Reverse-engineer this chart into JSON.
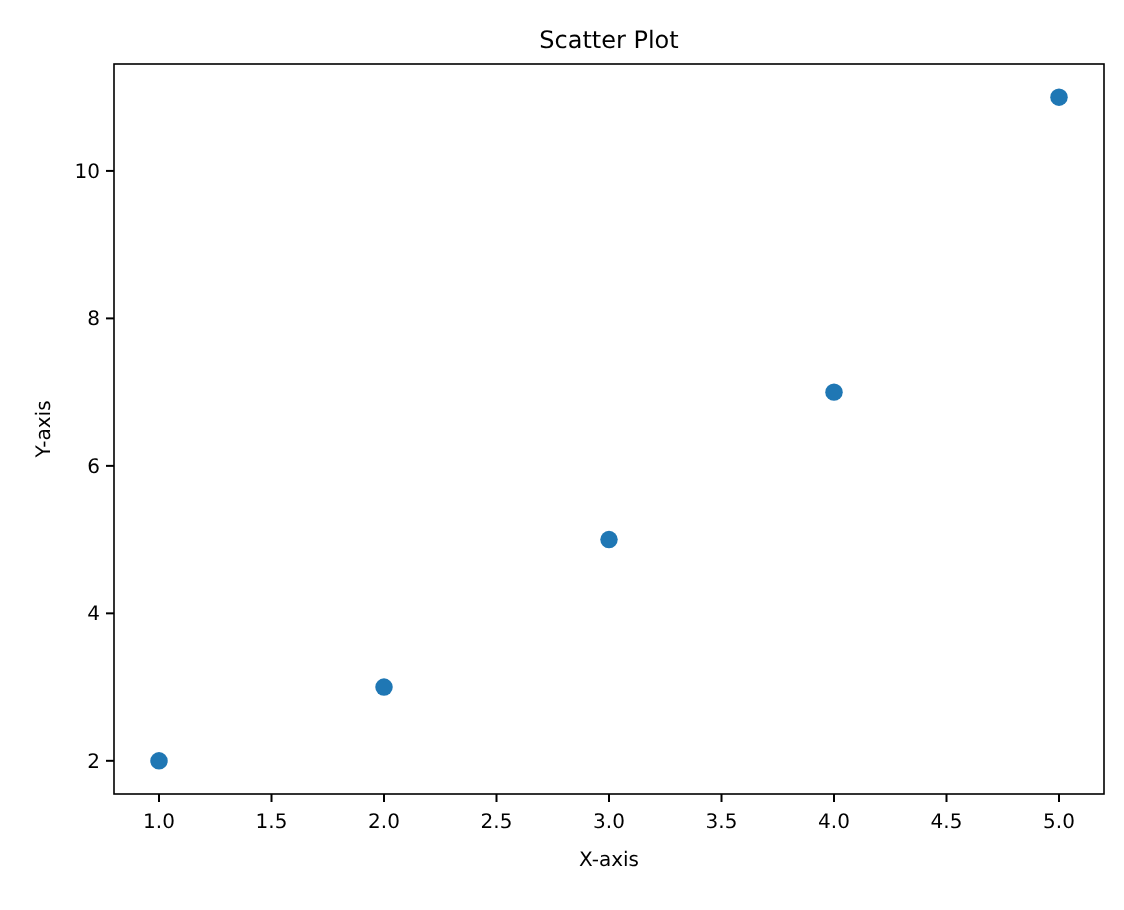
{
  "chart_data": {
    "type": "scatter",
    "title": "Scatter Plot",
    "xlabel": "X-axis",
    "ylabel": "Y-axis",
    "x": [
      1,
      2,
      3,
      4,
      5
    ],
    "series": [
      {
        "color": "#1f77b4",
        "values": [
          2,
          3,
          5,
          7,
          11
        ]
      }
    ],
    "xlim": [
      0.8,
      5.2
    ],
    "ylim": [
      1.55,
      11.45
    ],
    "xticks": [
      {
        "value": 1,
        "label": "1.0"
      },
      {
        "value": 1.5,
        "label": "1.5"
      },
      {
        "value": 2,
        "label": "2.0"
      },
      {
        "value": 2.5,
        "label": "2.5"
      },
      {
        "value": 3,
        "label": "3.0"
      },
      {
        "value": 3.5,
        "label": "3.5"
      },
      {
        "value": 4,
        "label": "4.0"
      },
      {
        "value": 4.5,
        "label": "4.5"
      },
      {
        "value": 5,
        "label": "5.0"
      }
    ],
    "yticks": [
      2,
      4,
      6,
      8,
      10
    ],
    "marker": "circle"
  }
}
